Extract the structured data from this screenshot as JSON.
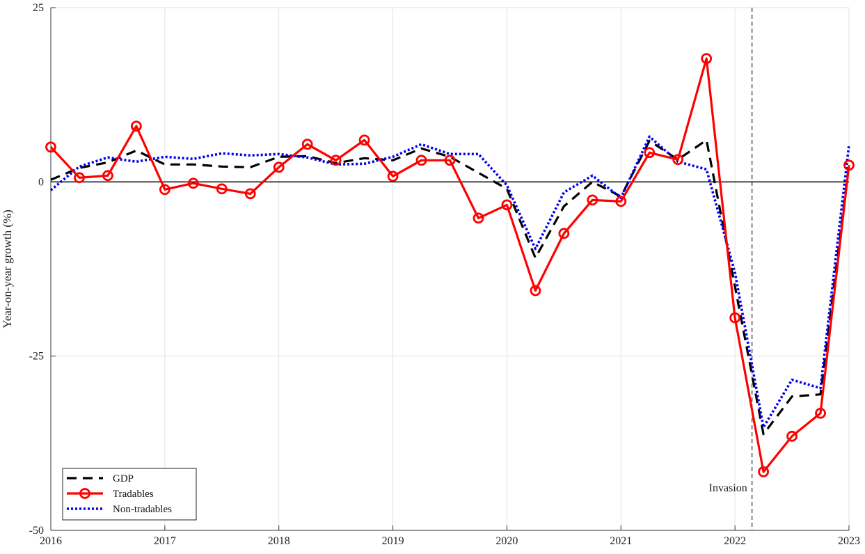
{
  "chart_data": {
    "type": "line",
    "title": "",
    "xlabel": "",
    "ylabel": "Year-on-year growth (%)",
    "xlim": [
      2016,
      2023
    ],
    "ylim": [
      -50,
      25
    ],
    "xticks": [
      2016,
      2017,
      2018,
      2019,
      2020,
      2021,
      2022,
      2023
    ],
    "xtick_labels": [
      "2016",
      "2017",
      "2018",
      "2019",
      "2020",
      "2021",
      "2022",
      "2023"
    ],
    "yticks": [
      -50,
      -25,
      0,
      25
    ],
    "ytick_labels": [
      "-50",
      "-25",
      "0",
      "25"
    ],
    "grid": true,
    "legend_position": "bottom-left",
    "zero_line": 0,
    "annotation": {
      "label": "Invasion",
      "x": 2022.15
    },
    "series": [
      {
        "name": "GDP",
        "color": "#000000",
        "style": "dashed",
        "x": [
          2016.0,
          2016.25,
          2016.5,
          2016.75,
          2017.0,
          2017.25,
          2017.5,
          2017.75,
          2018.0,
          2018.25,
          2018.5,
          2018.75,
          2019.0,
          2019.25,
          2019.5,
          2019.75,
          2020.0,
          2020.25,
          2020.5,
          2020.75,
          2021.0,
          2021.25,
          2021.5,
          2021.75,
          2022.0,
          2022.25,
          2022.5,
          2022.75,
          2023.0
        ],
        "values": [
          0.3,
          2.0,
          2.8,
          4.5,
          2.5,
          2.5,
          2.2,
          2.1,
          3.6,
          3.7,
          2.7,
          3.4,
          3.1,
          4.8,
          3.6,
          1.3,
          -1.0,
          -10.9,
          -3.5,
          0.0,
          -2.1,
          5.9,
          3.2,
          6.0,
          -15.0,
          -36.2,
          -30.8,
          -30.5,
          2.5
        ]
      },
      {
        "name": "Tradables",
        "color": "#ff0000",
        "style": "solid-marker",
        "x": [
          2016.0,
          2016.25,
          2016.5,
          2016.75,
          2017.0,
          2017.25,
          2017.5,
          2017.75,
          2018.0,
          2018.25,
          2018.5,
          2018.75,
          2019.0,
          2019.25,
          2019.5,
          2019.75,
          2020.0,
          2020.25,
          2020.5,
          2020.75,
          2021.0,
          2021.25,
          2021.5,
          2021.75,
          2022.0,
          2022.25,
          2022.5,
          2022.75,
          2023.0
        ],
        "values": [
          5.0,
          0.6,
          0.9,
          8.0,
          -1.1,
          -0.2,
          -1.0,
          -1.7,
          2.1,
          5.4,
          3.1,
          6.0,
          0.8,
          3.1,
          3.1,
          -5.2,
          -3.3,
          -15.6,
          -7.4,
          -2.6,
          -2.8,
          4.2,
          3.2,
          17.7,
          -19.5,
          -41.6,
          -36.5,
          -33.2,
          2.4
        ]
      },
      {
        "name": "Non-tradables",
        "color": "#0000ee",
        "style": "dotted",
        "x": [
          2016.0,
          2016.25,
          2016.5,
          2016.75,
          2017.0,
          2017.25,
          2017.5,
          2017.75,
          2018.0,
          2018.25,
          2018.5,
          2018.75,
          2019.0,
          2019.25,
          2019.5,
          2019.75,
          2020.0,
          2020.25,
          2020.5,
          2020.75,
          2021.0,
          2021.25,
          2021.5,
          2021.75,
          2022.0,
          2022.25,
          2022.5,
          2022.75,
          2023.0
        ],
        "values": [
          -1.2,
          2.2,
          3.5,
          2.9,
          3.6,
          3.3,
          4.1,
          3.8,
          4.0,
          3.5,
          2.5,
          2.6,
          3.6,
          5.4,
          4.0,
          4.0,
          -0.5,
          -9.6,
          -1.5,
          0.9,
          -2.3,
          6.5,
          2.9,
          1.8,
          -13.0,
          -35.2,
          -28.4,
          -29.6,
          5.3
        ]
      }
    ]
  }
}
